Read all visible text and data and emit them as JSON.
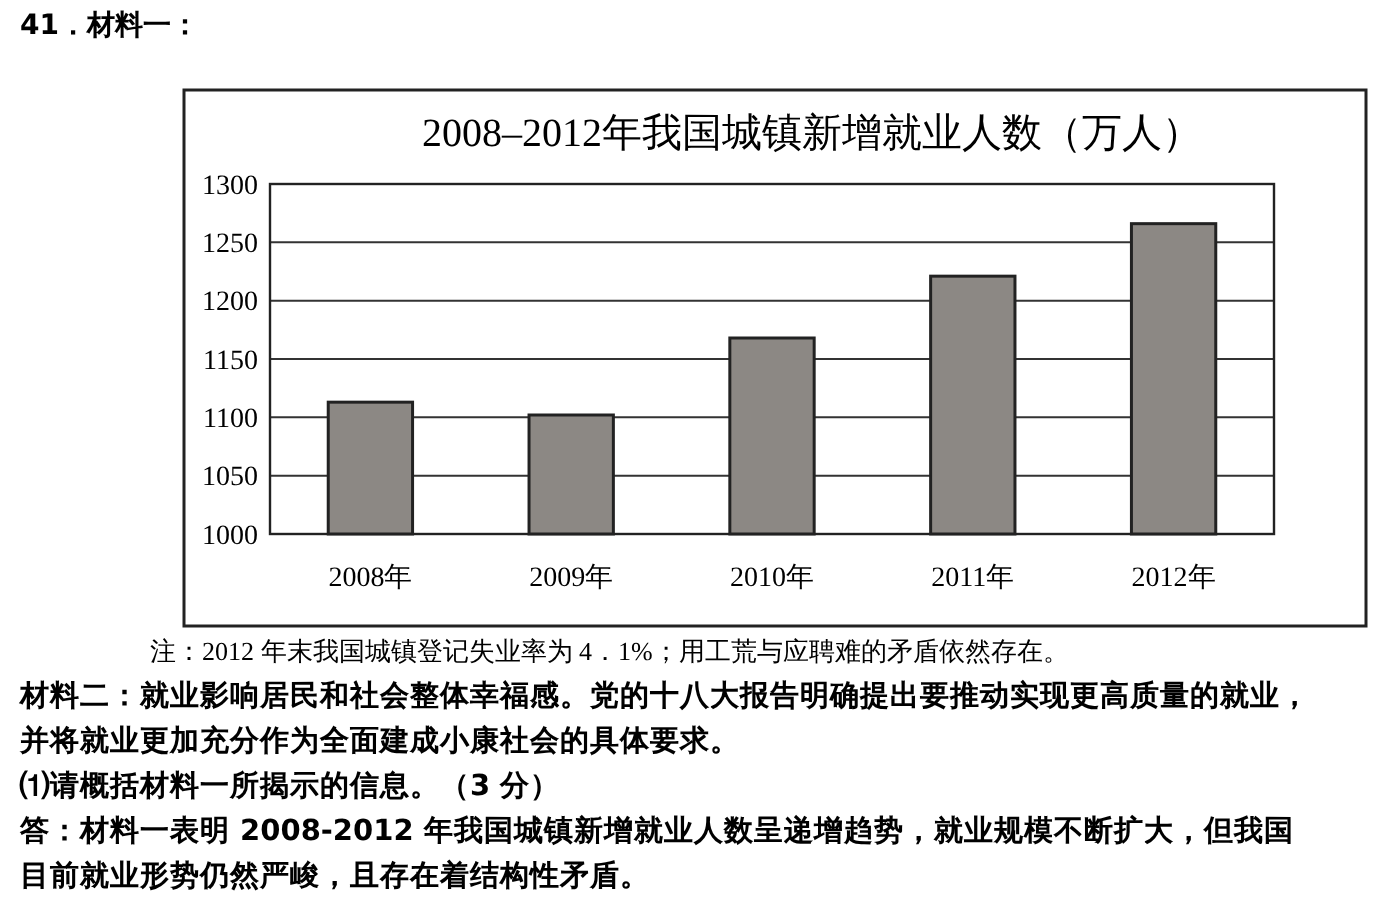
{
  "chart_data": {
    "type": "bar",
    "title": "2008–2012年我国城镇新增就业人数（万人）",
    "categories": [
      "2008年",
      "2009年",
      "2010年",
      "2011年",
      "2012年"
    ],
    "values": [
      1113,
      1102,
      1168,
      1221,
      1266
    ],
    "color": "#8c8884",
    "ylim": [
      1000,
      1300
    ],
    "yticks": [
      1000,
      1050,
      1100,
      1150,
      1200,
      1250,
      1300
    ],
    "grid": "y",
    "annotations": [
      "41．材料一：",
      "注：2012 年末我国城镇登记失业率为 4．1%；用工荒与应聘难的矛盾依然存在。",
      "材料二：就业影响居民和社会整体幸福感。党的十八大报告明确提出要推动实现更高质量的就业，并将就业更加充分作为全面建成小康社会的具体要求。",
      "⑴请概括材料一所揭示的信息。（3 分）",
      "答：材料一表明 2008-2012 年我国城镇新增就业人数呈递增趋势，就业规模不断扩大，但我国目前就业形势仍然严峻，且存在着结构性矛盾。"
    ]
  }
}
